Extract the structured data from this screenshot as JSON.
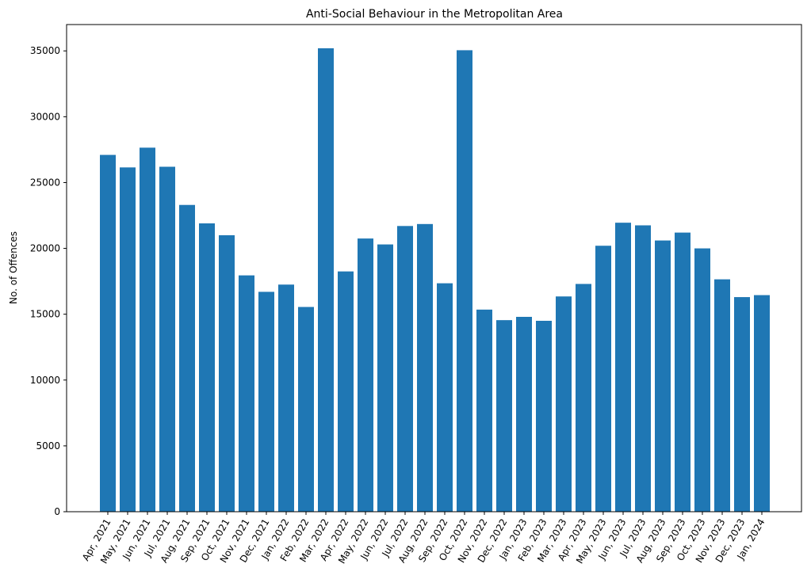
{
  "chart_data": {
    "type": "bar",
    "title": "Anti-Social Behaviour in the Metropolitan Area",
    "xlabel": "",
    "ylabel": "No. of Offences",
    "ylim": [
      0,
      37000
    ],
    "yticks": [
      0,
      5000,
      10000,
      15000,
      20000,
      25000,
      30000,
      35000
    ],
    "grid": false,
    "bar_color": "#1f77b4",
    "categories": [
      "Apr, 2021",
      "May, 2021",
      "Jun, 2021",
      "Jul, 2021",
      "Aug, 2021",
      "Sep, 2021",
      "Oct, 2021",
      "Nov, 2021",
      "Dec, 2021",
      "Jan, 2022",
      "Feb, 2022",
      "Mar, 2022",
      "Apr, 2022",
      "May, 2022",
      "Jun, 2022",
      "Jul, 2022",
      "Aug, 2022",
      "Sep, 2022",
      "Oct, 2022",
      "Nov, 2022",
      "Dec, 2022",
      "Jan, 2023",
      "Feb, 2023",
      "Mar, 2023",
      "Apr, 2023",
      "May, 2023",
      "Jun, 2023",
      "Jul, 2023",
      "Aug, 2023",
      "Sep, 2023",
      "Oct, 2023",
      "Nov, 2023",
      "Dec, 2023",
      "Jan, 2024"
    ],
    "values": [
      27100,
      26150,
      27650,
      26200,
      23300,
      21900,
      21000,
      17950,
      16700,
      17250,
      15550,
      35200,
      18250,
      20750,
      20300,
      21700,
      21850,
      17350,
      35050,
      15350,
      14550,
      14800,
      14500,
      16350,
      17300,
      20200,
      21950,
      21750,
      20600,
      21200,
      20000,
      17650,
      16300,
      16450
    ]
  }
}
